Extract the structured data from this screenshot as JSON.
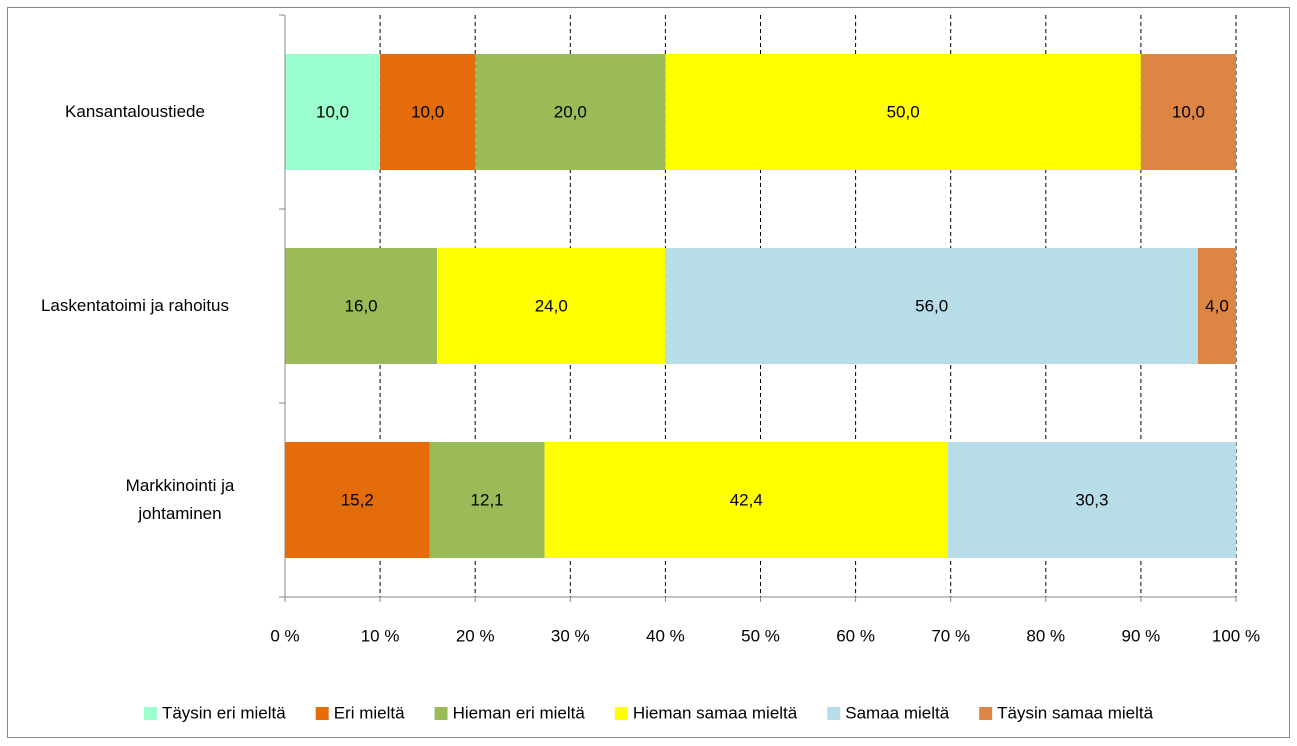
{
  "chart_data": {
    "type": "stacked_bar_horizontal",
    "categories": [
      "Kansantaloustiede",
      "Laskentatoimi ja rahoitus",
      "Markkinointi ja johtaminen"
    ],
    "series": [
      {
        "name": "Täysin eri mieltä",
        "color": "#99ffcc",
        "values": [
          10,
          null,
          null
        ],
        "value_labels": [
          "10,0",
          null,
          null
        ]
      },
      {
        "name": "Eri mieltä",
        "color": "#e46c0a",
        "values": [
          10,
          null,
          15.2
        ],
        "value_labels": [
          "10,0",
          null,
          "15,2"
        ]
      },
      {
        "name": "Hieman eri mieltä",
        "color": "#9bbb59",
        "values": [
          20,
          16,
          12.1
        ],
        "value_labels": [
          "20,0",
          "16,0",
          "12,1"
        ]
      },
      {
        "name": "Hieman samaa mieltä",
        "color": "#ffff00",
        "values": [
          50,
          24,
          42.4
        ],
        "value_labels": [
          "50,0",
          "24,0",
          "42,4"
        ]
      },
      {
        "name": "Samaa mieltä",
        "color": "#b7dde8",
        "values": [
          null,
          56,
          30.3
        ],
        "value_labels": [
          null,
          "56,0",
          "30,3"
        ]
      },
      {
        "name": "Täysin samaa mieltä",
        "color": "#dd8544",
        "values": [
          10,
          4,
          null
        ],
        "value_labels": [
          "10,0",
          "4,0",
          null
        ]
      }
    ],
    "xlim": [
      0,
      100
    ],
    "xticks": [
      {
        "value": 0,
        "label": "0 %"
      },
      {
        "value": 10,
        "label": "10 %"
      },
      {
        "value": 20,
        "label": "20 %"
      },
      {
        "value": 30,
        "label": "30 %"
      },
      {
        "value": 40,
        "label": "40 %"
      },
      {
        "value": 50,
        "label": "50 %"
      },
      {
        "value": 60,
        "label": "60 %"
      },
      {
        "value": 70,
        "label": "70 %"
      },
      {
        "value": 80,
        "label": "80 %"
      },
      {
        "value": 90,
        "label": "90 %"
      },
      {
        "value": 100,
        "label": "100 %"
      }
    ],
    "grid": true,
    "legend": "bottom"
  }
}
